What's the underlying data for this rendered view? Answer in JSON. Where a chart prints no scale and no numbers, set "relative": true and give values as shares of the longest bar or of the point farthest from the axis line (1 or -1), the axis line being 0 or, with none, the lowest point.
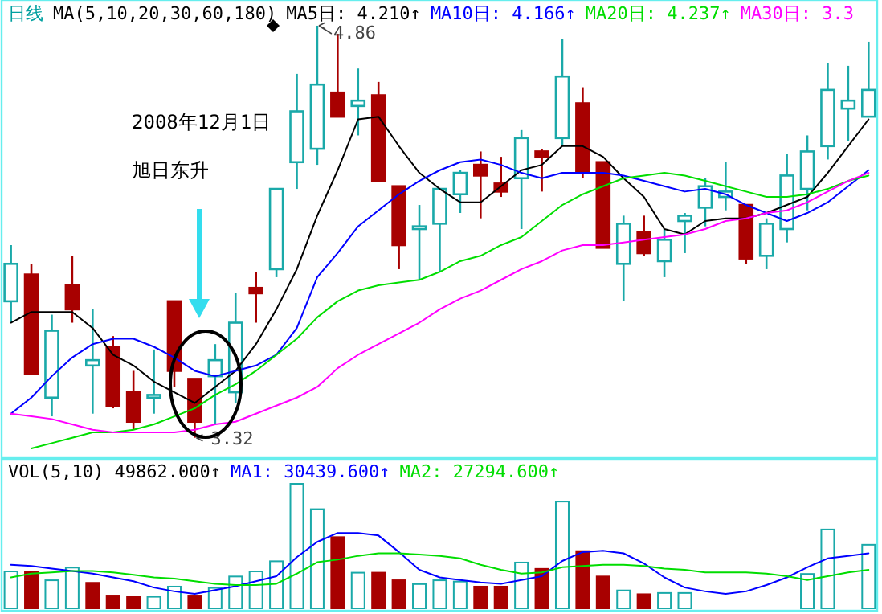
{
  "chart_data": [
    {
      "type": "candlestick",
      "title": "日线",
      "subtitle": "MA(5,10,20,30,60,180)",
      "legend": "top",
      "categories": [
        null,
        null,
        null,
        null,
        null,
        null,
        null,
        null,
        null,
        null,
        null,
        null,
        null,
        null,
        null,
        null,
        null,
        null,
        null,
        null,
        null,
        null,
        null,
        null,
        null,
        null,
        null,
        null,
        null,
        null,
        null,
        null,
        null,
        null,
        null,
        null,
        null,
        null,
        null,
        null,
        null,
        null,
        null
      ],
      "ylim": [
        3.25,
        4.95
      ],
      "ohlc": [
        [
          3.83,
          4.04,
          3.75,
          3.97
        ],
        [
          3.93,
          3.97,
          3.56,
          3.56
        ],
        [
          3.47,
          3.78,
          3.4,
          3.72
        ],
        [
          3.89,
          4.0,
          3.75,
          3.8
        ],
        [
          3.59,
          3.8,
          3.41,
          3.61
        ],
        [
          3.66,
          3.7,
          3.43,
          3.44
        ],
        [
          3.49,
          3.57,
          3.35,
          3.38
        ],
        [
          3.47,
          3.65,
          3.41,
          3.48
        ],
        [
          3.83,
          3.83,
          3.51,
          3.57
        ],
        [
          3.54,
          3.54,
          3.32,
          3.38
        ],
        [
          3.55,
          3.67,
          3.37,
          3.61
        ],
        [
          3.49,
          3.86,
          3.45,
          3.75
        ],
        [
          3.88,
          3.94,
          3.75,
          3.86
        ],
        [
          3.95,
          4.25,
          3.92,
          4.25
        ],
        [
          4.35,
          4.68,
          4.25,
          4.54
        ],
        [
          4.4,
          4.86,
          4.34,
          4.64
        ],
        [
          4.61,
          4.83,
          4.52,
          4.52
        ],
        [
          4.56,
          4.7,
          4.45,
          4.58
        ],
        [
          4.6,
          4.65,
          4.28,
          4.28
        ],
        [
          4.26,
          4.26,
          3.95,
          4.04
        ],
        [
          4.1,
          4.19,
          3.91,
          4.11
        ],
        [
          4.12,
          4.25,
          3.94,
          4.25
        ],
        [
          4.23,
          4.32,
          4.16,
          4.31
        ],
        [
          4.34,
          4.39,
          4.14,
          4.3
        ],
        [
          4.27,
          4.37,
          4.22,
          4.24
        ],
        [
          4.29,
          4.47,
          4.1,
          4.44
        ],
        [
          4.39,
          4.4,
          4.24,
          4.37
        ],
        [
          4.44,
          4.81,
          4.41,
          4.67
        ],
        [
          4.57,
          4.63,
          4.29,
          4.31
        ],
        [
          4.35,
          4.35,
          4.03,
          4.03
        ],
        [
          3.97,
          4.15,
          3.83,
          4.12
        ],
        [
          4.09,
          4.15,
          4.0,
          4.01
        ],
        [
          3.98,
          4.1,
          3.92,
          4.06
        ],
        [
          4.13,
          4.16,
          4.01,
          4.15
        ],
        [
          4.18,
          4.29,
          4.11,
          4.26
        ],
        [
          4.22,
          4.35,
          4.17,
          4.24
        ],
        [
          4.19,
          4.19,
          3.97,
          3.99
        ],
        [
          4.0,
          4.14,
          3.95,
          4.12
        ],
        [
          4.1,
          4.38,
          4.05,
          4.3
        ],
        [
          4.25,
          4.45,
          4.17,
          4.39
        ],
        [
          4.41,
          4.72,
          4.36,
          4.62
        ],
        [
          4.55,
          4.71,
          4.43,
          4.58
        ],
        [
          4.52,
          4.8,
          4.52,
          4.62
        ]
      ],
      "colors": [
        "#1aa9a9",
        "#a80000",
        "#1aa9a9",
        "#a80000",
        "#1aa9a9",
        "#a80000",
        "#a80000",
        "#1aa9a9",
        "#a80000",
        "#a80000",
        "#1aa9a9",
        "#1aa9a9",
        "#a80000",
        "#1aa9a9",
        "#1aa9a9",
        "#1aa9a9",
        "#a80000",
        "#1aa9a9",
        "#a80000",
        "#a80000",
        "#1aa9a9",
        "#1aa9a9",
        "#1aa9a9",
        "#a80000",
        "#a80000",
        "#1aa9a9",
        "#a80000",
        "#1aa9a9",
        "#a80000",
        "#a80000",
        "#1aa9a9",
        "#a80000",
        "#1aa9a9",
        "#1aa9a9",
        "#1aa9a9",
        "#1aa9a9",
        "#a80000",
        "#1aa9a9",
        "#1aa9a9",
        "#1aa9a9",
        "#1aa9a9",
        "#1aa9a9",
        "#1aa9a9"
      ],
      "series": [
        {
          "name": "MA5日: 4.210↑",
          "type": "line",
          "color": "#000000",
          "values": [
            3.75,
            3.79,
            3.79,
            3.79,
            3.73,
            3.63,
            3.59,
            3.53,
            3.49,
            3.45,
            3.51,
            3.57,
            3.67,
            3.8,
            3.95,
            4.15,
            4.32,
            4.51,
            4.52,
            4.41,
            4.31,
            4.25,
            4.2,
            4.2,
            4.26,
            4.32,
            4.34,
            4.41,
            4.41,
            4.37,
            4.29,
            4.22,
            4.1,
            4.08,
            4.13,
            4.14,
            4.14,
            4.16,
            4.19,
            4.22,
            4.31,
            4.41,
            4.51
          ]
        },
        {
          "name": "MA10日: 4.166↑",
          "type": "line",
          "color": "#0000ff",
          "values": [
            3.41,
            3.47,
            3.55,
            3.62,
            3.67,
            3.69,
            3.69,
            3.66,
            3.62,
            3.57,
            3.55,
            3.57,
            3.59,
            3.63,
            3.73,
            3.92,
            4.01,
            4.11,
            4.17,
            4.23,
            4.28,
            4.32,
            4.35,
            4.36,
            4.34,
            4.31,
            4.29,
            4.31,
            4.31,
            4.31,
            4.3,
            4.28,
            4.26,
            4.24,
            4.25,
            4.23,
            4.19,
            4.16,
            4.13,
            4.16,
            4.2,
            4.26,
            4.32
          ]
        },
        {
          "name": "MA20日: 4.237↑",
          "type": "line",
          "color": "#00dd00",
          "values": [
            null,
            3.28,
            3.3,
            3.32,
            3.34,
            3.34,
            3.35,
            3.37,
            3.4,
            3.43,
            3.48,
            3.52,
            3.57,
            3.63,
            3.69,
            3.77,
            3.83,
            3.87,
            3.89,
            3.9,
            3.91,
            3.94,
            3.98,
            4.0,
            4.04,
            4.07,
            4.13,
            4.19,
            4.23,
            4.26,
            4.29,
            4.3,
            4.31,
            4.3,
            4.28,
            4.26,
            4.24,
            4.22,
            4.22,
            4.23,
            4.25,
            4.28,
            4.3
          ]
        },
        {
          "name": "MA30日: 3.3",
          "type": "line",
          "color": "#ff00ff",
          "values": [
            3.41,
            3.4,
            3.39,
            3.37,
            3.35,
            3.34,
            3.34,
            3.34,
            3.34,
            3.35,
            3.37,
            3.38,
            3.41,
            3.44,
            3.47,
            3.51,
            3.58,
            3.63,
            3.67,
            3.71,
            3.75,
            3.8,
            3.84,
            3.87,
            3.91,
            3.95,
            3.98,
            4.02,
            4.04,
            4.04,
            4.05,
            4.06,
            4.07,
            4.08,
            4.1,
            4.13,
            4.14,
            4.16,
            4.17,
            4.2,
            4.24,
            4.28,
            4.31
          ]
        }
      ],
      "annotations": [
        "4.86",
        "3.32",
        "2008年12月1日",
        "旭日东升"
      ]
    },
    {
      "type": "bar",
      "title": "VOL(5,10) 49862.000↑",
      "relative": true,
      "legend": "top",
      "categories": [
        null,
        null,
        null,
        null,
        null,
        null,
        null,
        null,
        null,
        null,
        null,
        null,
        null,
        null,
        null,
        null,
        null,
        null,
        null,
        null,
        null,
        null,
        null,
        null,
        null,
        null,
        null,
        null,
        null,
        null,
        null,
        null,
        null,
        null,
        null,
        null,
        null,
        null,
        null,
        null,
        null,
        null,
        null
      ],
      "series": [
        {
          "type": "bar",
          "values": [
            0.31,
            0.31,
            0.24,
            0.34,
            0.22,
            0.12,
            0.11,
            0.11,
            0.19,
            0.12,
            0.18,
            0.27,
            0.31,
            0.39,
            1,
            0.8,
            0.58,
            0.3,
            0.3,
            0.24,
            0.21,
            0.24,
            0.23,
            0.19,
            0.19,
            0.38,
            0.33,
            0.86,
            0.47,
            0.27,
            0.16,
            0.13,
            0.14,
            0.14,
            null,
            null,
            null,
            null,
            null,
            0.29,
            0.64,
            null,
            0.52
          ],
          "colors": [
            "#1aa9a9",
            "#a80000",
            "#1aa9a9",
            "#1aa9a9",
            "#a80000",
            "#a80000",
            "#a80000",
            "#1aa9a9",
            "#1aa9a9",
            "#a80000",
            "#1aa9a9",
            "#1aa9a9",
            "#1aa9a9",
            "#1aa9a9",
            "#1aa9a9",
            "#1aa9a9",
            "#a80000",
            "#1aa9a9",
            "#a80000",
            "#a80000",
            "#1aa9a9",
            "#1aa9a9",
            "#1aa9a9",
            "#a80000",
            "#a80000",
            "#1aa9a9",
            "#a80000",
            "#1aa9a9",
            "#a80000",
            "#a80000",
            "#1aa9a9",
            "#a80000",
            "#1aa9a9",
            "#1aa9a9",
            null,
            null,
            null,
            null,
            null,
            "#1aa9a9",
            "#1aa9a9",
            null,
            "#1aa9a9"
          ]
        },
        {
          "name": "MA1: 30439.600↑",
          "type": "line",
          "color": "#0000ff",
          "values": [
            0.35,
            0.34,
            0.32,
            0.3,
            0.28,
            0.25,
            0.22,
            0.17,
            0.14,
            0.12,
            0.15,
            0.18,
            0.22,
            0.26,
            0.41,
            0.53,
            0.6,
            0.6,
            0.58,
            0.45,
            0.31,
            0.25,
            0.23,
            0.21,
            0.2,
            0.23,
            0.26,
            0.38,
            0.45,
            0.46,
            0.44,
            0.36,
            0.25,
            0.17,
            0.14,
            0.12,
            0.14,
            0.19,
            0.25,
            0.33,
            0.4,
            0.42,
            0.44
          ]
        },
        {
          "name": "MA2: 27294.600↑",
          "type": "line",
          "color": "#00dd00",
          "values": [
            0.25,
            0.28,
            0.29,
            0.3,
            0.3,
            0.29,
            0.27,
            0.25,
            0.24,
            0.22,
            0.2,
            0.19,
            0.19,
            0.2,
            0.28,
            0.37,
            0.39,
            0.42,
            0.44,
            0.44,
            0.43,
            0.42,
            0.4,
            0.35,
            0.31,
            0.28,
            0.29,
            0.33,
            0.34,
            0.35,
            0.35,
            0.34,
            0.32,
            0.31,
            0.29,
            0.29,
            0.29,
            0.28,
            0.26,
            0.23,
            0.26,
            0.29,
            0.31
          ]
        }
      ]
    }
  ]
}
